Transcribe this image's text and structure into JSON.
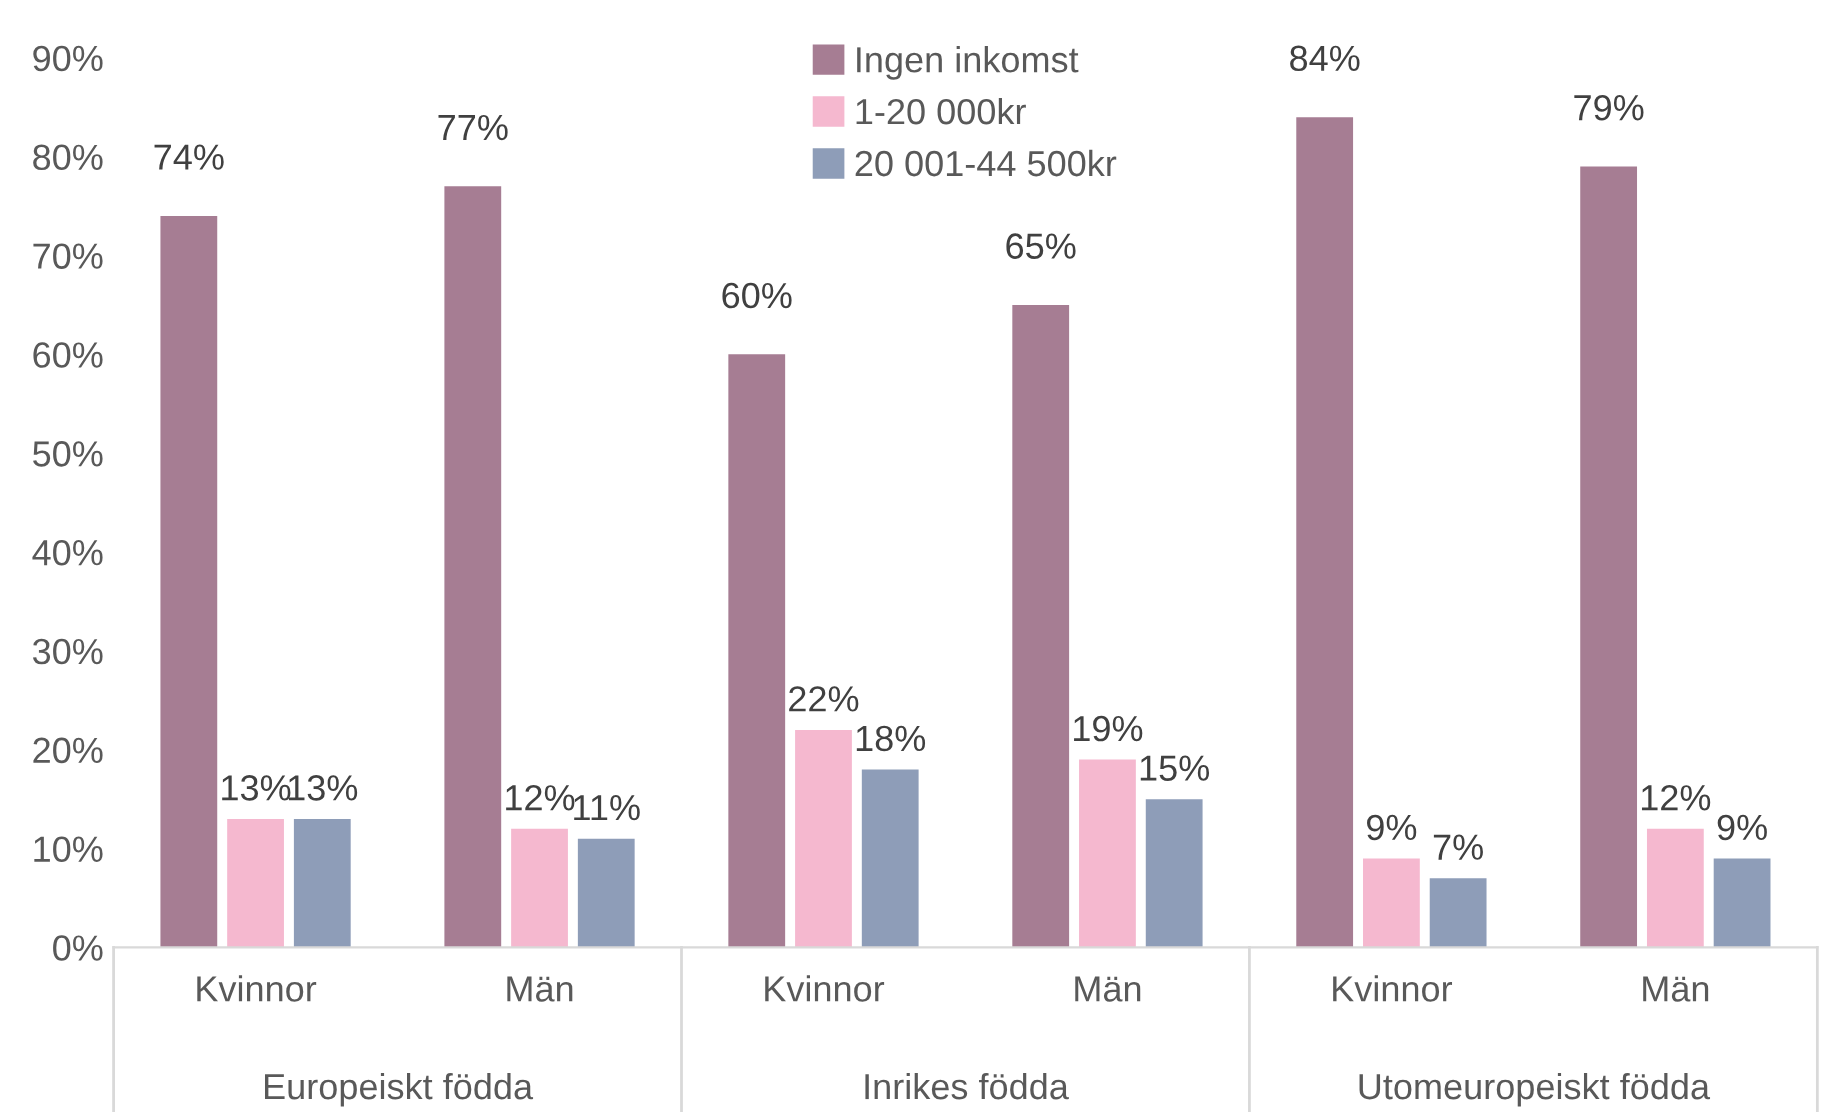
{
  "chart_data": {
    "type": "bar",
    "categories": [
      "Kvinnor",
      "Män",
      "Kvinnor",
      "Män",
      "Kvinnor",
      "Män"
    ],
    "annotations": [
      "Europeiskt födda",
      "Inrikes födda",
      "Utomeuropeiskt födda"
    ],
    "series": [
      {
        "name": "Ingen inkomst",
        "color": "#a67d93",
        "values": [
          74,
          77,
          60,
          65,
          84,
          79
        ],
        "value_labels": [
          "74%",
          "77%",
          "60%",
          "65%",
          "84%",
          "79%"
        ]
      },
      {
        "name": "1-20 000kr",
        "color": "#f5b8cf",
        "values": [
          13,
          12,
          22,
          19,
          9,
          12
        ],
        "value_labels": [
          "13%",
          "12%",
          "22%",
          "19%",
          "9%",
          "12%"
        ]
      },
      {
        "name": "20 001-44 500kr",
        "color": "#8e9db8",
        "values": [
          13,
          11,
          18,
          15,
          7,
          9
        ],
        "value_labels": [
          "13%",
          "11%",
          "18%",
          "15%",
          "7%",
          "9%"
        ]
      }
    ],
    "ylim": [
      0,
      90
    ],
    "yticks": [
      {
        "value": 0,
        "label": "0%"
      },
      {
        "value": 10,
        "label": "10%"
      },
      {
        "value": 20,
        "label": "20%"
      },
      {
        "value": 30,
        "label": "30%"
      },
      {
        "value": 40,
        "label": "40%"
      },
      {
        "value": 50,
        "label": "50%"
      },
      {
        "value": 60,
        "label": "60%"
      },
      {
        "value": 70,
        "label": "70%"
      },
      {
        "value": 80,
        "label": "80%"
      },
      {
        "value": 90,
        "label": "90%"
      }
    ],
    "grid": false,
    "legend": "top"
  }
}
